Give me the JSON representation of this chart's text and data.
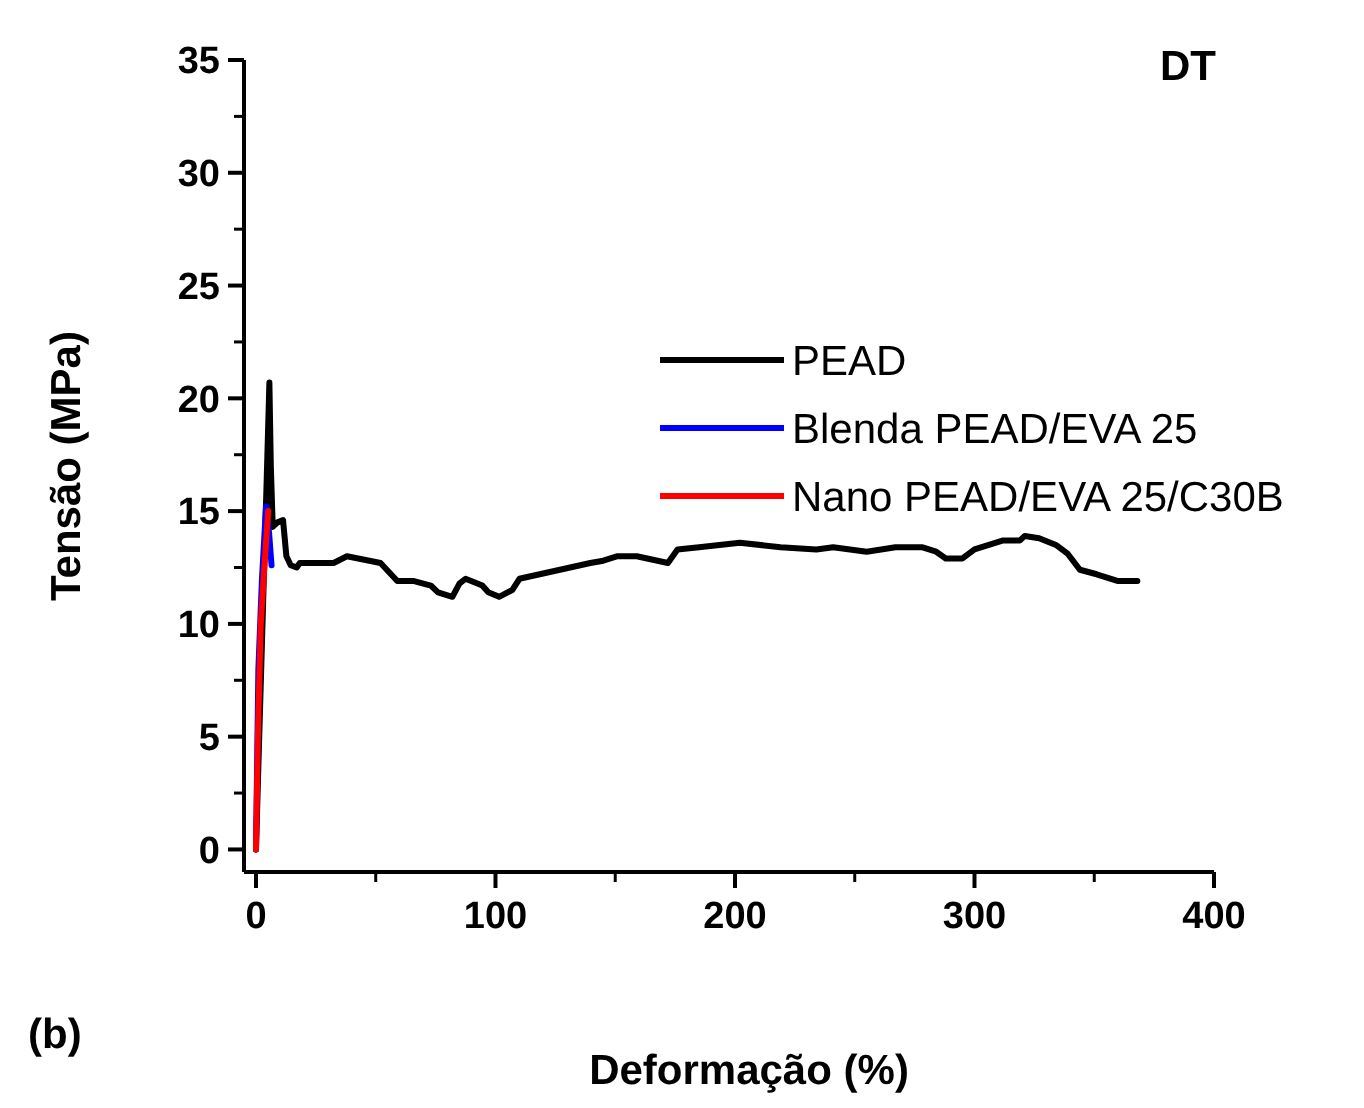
{
  "chart_data": {
    "type": "line",
    "xlabel": "Deformação (%)",
    "ylabel": "Tensão (MPa)",
    "annotations": [
      "DT",
      "(b)"
    ],
    "xlim": [
      -5,
      400
    ],
    "ylim": [
      -1,
      35
    ],
    "xticks": [
      0,
      100,
      200,
      300,
      400
    ],
    "yticks": [
      0,
      5,
      10,
      15,
      20,
      25,
      30,
      35
    ],
    "grid": false,
    "legend": "right",
    "line_style": "solid",
    "marker": "none",
    "series": [
      {
        "name": "PEAD",
        "color": "#000000",
        "x": [
          0,
          4.5,
          5.6,
          6.2,
          7,
          9,
          11.3,
          12.7,
          14.5,
          17,
          18.3,
          32.4,
          38,
          52,
          59,
          66,
          73,
          76,
          82,
          85,
          87.5,
          94.5,
          97,
          101.5,
          107,
          110,
          122.7,
          139.6,
          145,
          151,
          159,
          172,
          176,
          185,
          202,
          219,
          234,
          241,
          255,
          267,
          278,
          284,
          288,
          295,
          300,
          312,
          319,
          321,
          327,
          334,
          339,
          344,
          351,
          360,
          368
        ],
        "values": [
          0,
          16.5,
          20.7,
          17,
          14.3,
          14.5,
          14.6,
          13,
          12.6,
          12.5,
          12.7,
          12.7,
          13,
          12.7,
          11.9,
          11.9,
          11.7,
          11.4,
          11.2,
          11.8,
          12,
          11.7,
          11.4,
          11.2,
          11.5,
          12,
          12.3,
          12.7,
          12.8,
          13,
          13,
          12.7,
          13.3,
          13.4,
          13.6,
          13.4,
          13.3,
          13.4,
          13.2,
          13.4,
          13.4,
          13.2,
          12.9,
          12.9,
          13.3,
          13.7,
          13.7,
          13.9,
          13.8,
          13.5,
          13.1,
          12.4,
          12.2,
          11.9,
          11.9
        ]
      },
      {
        "name": "Blenda PEAD/EVA 25",
        "color": "#0000ff",
        "x": [
          0,
          1,
          2.5,
          4.2,
          5.5,
          6.5
        ],
        "values": [
          0,
          8,
          12,
          15.2,
          14,
          12.6
        ]
      },
      {
        "name": "Nano PEAD/EVA 25/C30B",
        "color": "#ff0000",
        "x": [
          0,
          0.8,
          2,
          3.5,
          5.1
        ],
        "values": [
          0,
          5,
          10,
          12.5,
          15
        ]
      }
    ]
  }
}
